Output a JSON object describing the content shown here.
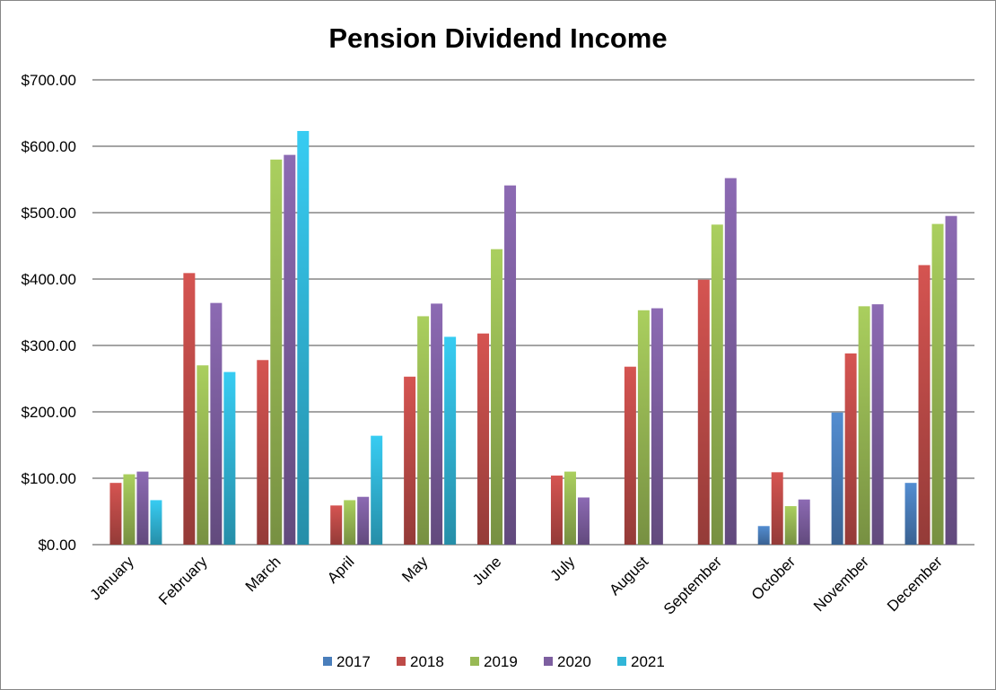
{
  "chart_data": {
    "type": "bar",
    "title": "Pension Dividend Income",
    "xlabel": "",
    "ylabel": "",
    "ylim": [
      0,
      700
    ],
    "yticks": [
      0,
      100,
      200,
      300,
      400,
      500,
      600,
      700
    ],
    "ytick_labels": [
      "$0.00",
      "$100.00",
      "$200.00",
      "$300.00",
      "$400.00",
      "$500.00",
      "$600.00",
      "$700.00"
    ],
    "grid": true,
    "legend_position": "bottom",
    "categories": [
      "January",
      "February",
      "March",
      "April",
      "May",
      "June",
      "July",
      "August",
      "September",
      "October",
      "November",
      "December"
    ],
    "series": [
      {
        "name": "2017",
        "color": "#4A7EBB",
        "values": [
          null,
          null,
          null,
          null,
          null,
          null,
          null,
          null,
          null,
          28,
          199,
          93
        ]
      },
      {
        "name": "2018",
        "color": "#BE4B48",
        "values": [
          93,
          409,
          278,
          59,
          253,
          318,
          104,
          268,
          399,
          109,
          288,
          421
        ]
      },
      {
        "name": "2019",
        "color": "#98B954",
        "values": [
          106,
          270,
          580,
          67,
          344,
          445,
          110,
          353,
          482,
          58,
          359,
          483
        ]
      },
      {
        "name": "2020",
        "color": "#7D5FA0",
        "values": [
          110,
          364,
          587,
          72,
          363,
          541,
          71,
          356,
          552,
          68,
          362,
          495
        ]
      },
      {
        "name": "2021",
        "color": "#31B6D8",
        "values": [
          67,
          260,
          623,
          164,
          313,
          null,
          null,
          null,
          null,
          null,
          null,
          null
        ]
      }
    ]
  }
}
